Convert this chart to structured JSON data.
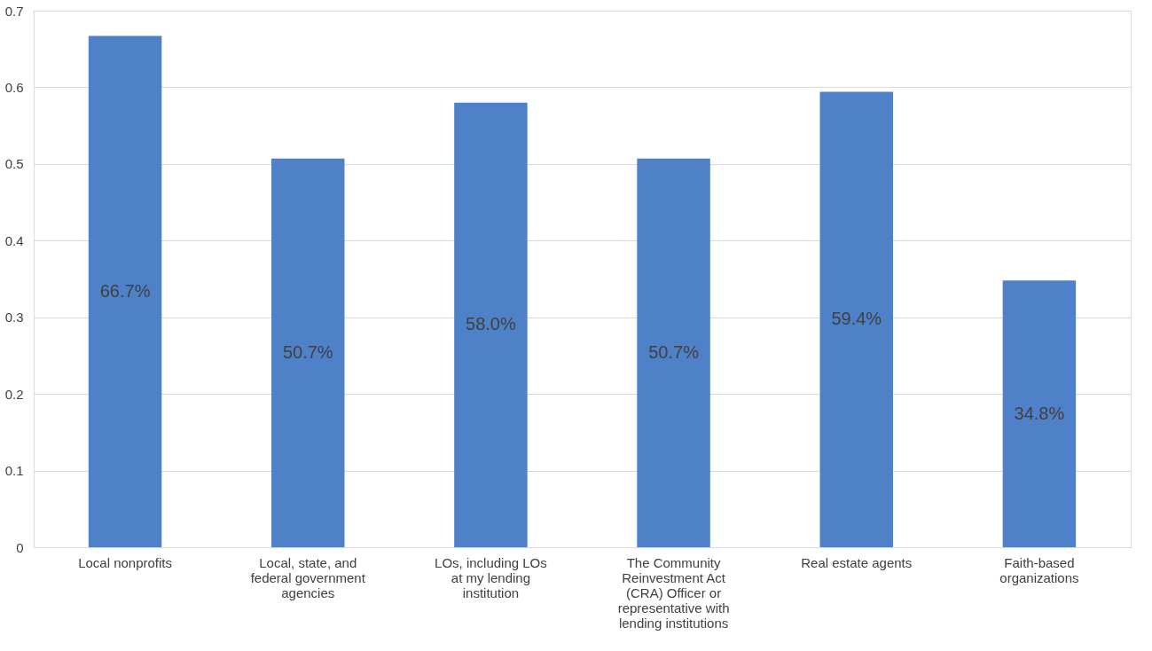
{
  "chart_data": {
    "type": "bar",
    "categories": [
      "Local nonprofits",
      "Local, state, and federal government agencies",
      "LOs, including LOs at my lending institution",
      "The Community Reinvestment Act (CRA) Officer or representative with lending institutions",
      "Real estate agents",
      "Faith-based organizations"
    ],
    "values": [
      0.667,
      0.507,
      0.58,
      0.507,
      0.594,
      0.348
    ],
    "value_labels": [
      "66.7%",
      "50.7%",
      "58.0%",
      "50.7%",
      "59.4%",
      "34.8%"
    ],
    "color": "#4f81c8",
    "ylim": [
      0,
      0.7
    ],
    "yticks": [
      0,
      0.1,
      0.2,
      0.3,
      0.4,
      0.5,
      0.6,
      0.7
    ],
    "grid": "y"
  }
}
